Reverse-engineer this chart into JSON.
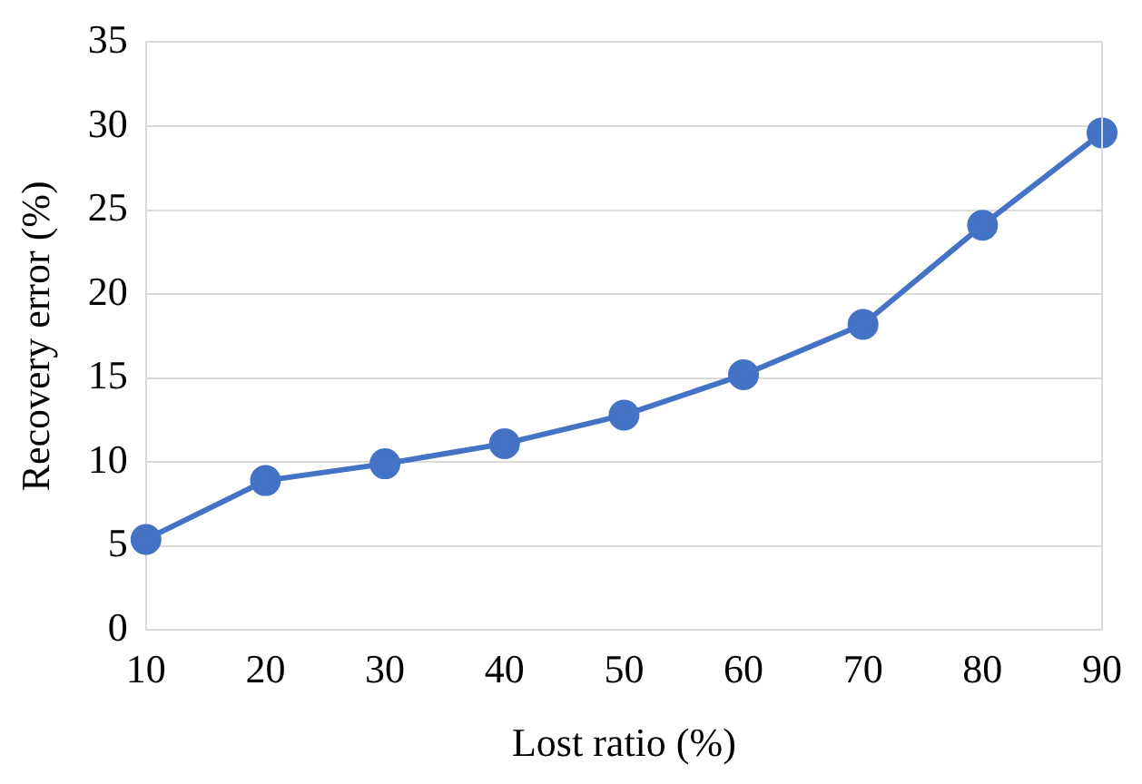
{
  "chart_data": {
    "type": "line",
    "xlabel": "Lost ratio (%)",
    "ylabel": "Recovery error (%)",
    "categories": [
      "10",
      "20",
      "30",
      "40",
      "50",
      "60",
      "70",
      "80",
      "90"
    ],
    "series": [
      {
        "color": "#4472c4",
        "values": [
          5.4,
          8.9,
          9.9,
          11.1,
          12.8,
          15.2,
          18.2,
          24.1,
          29.6
        ]
      }
    ],
    "ylim": [
      0,
      35
    ],
    "yticks": [
      0,
      5,
      10,
      15,
      20,
      25,
      30,
      35
    ],
    "grid": "y",
    "marker": "circle",
    "line_style": "solid",
    "legend": false
  }
}
